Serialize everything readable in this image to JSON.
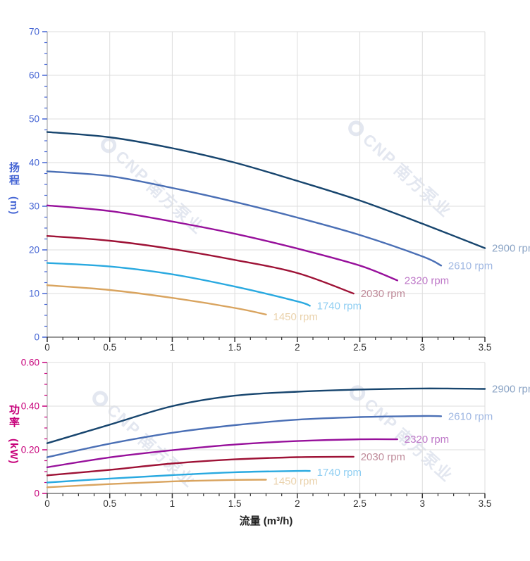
{
  "watermark": {
    "brand": "CNP",
    "name": "南方泵业",
    "color": "#E3E7F0"
  },
  "chart_data": [
    {
      "id": "head",
      "type": "line",
      "title": "",
      "ylabel": "扬程 (m)",
      "ylabel_cjk": "扬程",
      "ylabel_unit": "(m)",
      "xlabel": "",
      "xlim": [
        0,
        3.5
      ],
      "ylim": [
        0,
        70
      ],
      "grid": true,
      "legend_position": "right-of-curve-end",
      "axis_color": "#4565D4",
      "x_tick_color": "#333333",
      "grid_color": "#DDDDDD",
      "spine_left_color": "#999999",
      "spine_bottom_color": "#333333",
      "x_ticks": [
        [
          0,
          "0"
        ],
        [
          0.5,
          "0.5"
        ],
        [
          1,
          "1"
        ],
        [
          1.5,
          "1.5"
        ],
        [
          2,
          "2"
        ],
        [
          2.5,
          "2.5"
        ],
        [
          3,
          "3"
        ],
        [
          3.5,
          "3.5"
        ]
      ],
      "x_minor_step": 0.125,
      "y_ticks": [
        [
          0,
          "0"
        ],
        [
          10,
          "10"
        ],
        [
          20,
          "20"
        ],
        [
          30,
          "30"
        ],
        [
          40,
          "40"
        ],
        [
          50,
          "50"
        ],
        [
          60,
          "60"
        ],
        [
          70,
          "70"
        ]
      ],
      "y_minor_step": 2.5,
      "series": [
        {
          "name": "2900 rpm",
          "color": "#17456E",
          "label_color": "#8CA5C6",
          "points": [
            [
              0,
              47
            ],
            [
              0.5,
              45.8
            ],
            [
              1,
              43.3
            ],
            [
              1.5,
              40
            ],
            [
              2,
              35.8
            ],
            [
              2.5,
              31.3
            ],
            [
              3,
              26
            ],
            [
              3.5,
              20.4
            ]
          ]
        },
        {
          "name": "2610 rpm",
          "color": "#4A6FB5",
          "label_color": "#9FB7E2",
          "points": [
            [
              0,
              38
            ],
            [
              0.5,
              36.9
            ],
            [
              1,
              34.2
            ],
            [
              1.5,
              31
            ],
            [
              2,
              27.4
            ],
            [
              2.5,
              23.4
            ],
            [
              3,
              18.5
            ],
            [
              3.15,
              16.4
            ]
          ]
        },
        {
          "name": "2320 rpm",
          "color": "#97109B",
          "label_color": "#BE78C8",
          "points": [
            [
              0,
              30.2
            ],
            [
              0.5,
              28.9
            ],
            [
              1,
              26.5
            ],
            [
              1.5,
              23.7
            ],
            [
              2,
              20.3
            ],
            [
              2.5,
              16.4
            ],
            [
              2.8,
              13
            ]
          ]
        },
        {
          "name": "2030 rpm",
          "color": "#9E1236",
          "label_color": "#C08C9B",
          "points": [
            [
              0,
              23.2
            ],
            [
              0.5,
              22.1
            ],
            [
              1,
              20.2
            ],
            [
              1.5,
              17.7
            ],
            [
              2,
              14.7
            ],
            [
              2.45,
              10
            ]
          ]
        },
        {
          "name": "1740 rpm",
          "color": "#29A9E0",
          "label_color": "#8FCEF2",
          "points": [
            [
              0,
              17
            ],
            [
              0.5,
              16.2
            ],
            [
              1,
              14.4
            ],
            [
              1.5,
              11.6
            ],
            [
              2,
              8.2
            ],
            [
              2.1,
              7.2
            ]
          ]
        },
        {
          "name": "1450 rpm",
          "color": "#D9A45F",
          "label_color": "#EAD2AC",
          "label_dy": 8,
          "points": [
            [
              0,
              11.9
            ],
            [
              0.5,
              10.8
            ],
            [
              1,
              9
            ],
            [
              1.5,
              6.7
            ],
            [
              1.75,
              5.2
            ]
          ]
        }
      ]
    },
    {
      "id": "power",
      "type": "line",
      "title": "",
      "ylabel": "功率 (kW)",
      "ylabel_cjk": "功率",
      "ylabel_unit": "(kW)",
      "xlabel": "流量 (m³/h)",
      "xlim": [
        0,
        3.5
      ],
      "ylim": [
        0,
        0.6
      ],
      "grid": true,
      "legend_position": "right-of-curve-end",
      "axis_color": "#C7007A",
      "x_tick_color": "#333333",
      "grid_color": "#DDDDDD",
      "spine_left_color": "#999999",
      "spine_bottom_color": "#333333",
      "x_ticks": [
        [
          0,
          "0"
        ],
        [
          0.5,
          "0.5"
        ],
        [
          1,
          "1"
        ],
        [
          1.5,
          "1.5"
        ],
        [
          2,
          "2"
        ],
        [
          2.5,
          "2.5"
        ],
        [
          3,
          "3"
        ],
        [
          3.5,
          "3.5"
        ]
      ],
      "x_minor_step": 0.125,
      "y_ticks": [
        [
          0,
          "0"
        ],
        [
          0.2,
          "0.20"
        ],
        [
          0.4,
          "0.40"
        ],
        [
          0.6,
          "0.60"
        ]
      ],
      "y_minor_step": 0.05,
      "series": [
        {
          "name": "2900 rpm",
          "color": "#17456E",
          "label_color": "#8CA5C6",
          "points": [
            [
              0,
              0.23
            ],
            [
              0.5,
              0.315
            ],
            [
              1,
              0.4
            ],
            [
              1.5,
              0.448
            ],
            [
              2,
              0.466
            ],
            [
              2.5,
              0.476
            ],
            [
              3,
              0.481
            ],
            [
              3.5,
              0.479
            ]
          ]
        },
        {
          "name": "2610 rpm",
          "color": "#4A6FB5",
          "label_color": "#9FB7E2",
          "points": [
            [
              0,
              0.166
            ],
            [
              0.5,
              0.228
            ],
            [
              1,
              0.278
            ],
            [
              1.5,
              0.313
            ],
            [
              2,
              0.338
            ],
            [
              2.5,
              0.35
            ],
            [
              3,
              0.355
            ],
            [
              3.15,
              0.354
            ]
          ]
        },
        {
          "name": "2320 rpm",
          "color": "#97109B",
          "label_color": "#BE78C8",
          "points": [
            [
              0,
              0.12
            ],
            [
              0.5,
              0.165
            ],
            [
              1,
              0.198
            ],
            [
              1.5,
              0.224
            ],
            [
              2,
              0.24
            ],
            [
              2.5,
              0.248
            ],
            [
              2.8,
              0.248
            ]
          ]
        },
        {
          "name": "2030 rpm",
          "color": "#9E1236",
          "label_color": "#C08C9B",
          "points": [
            [
              0,
              0.083
            ],
            [
              0.5,
              0.108
            ],
            [
              1,
              0.137
            ],
            [
              1.5,
              0.156
            ],
            [
              2,
              0.166
            ],
            [
              2.45,
              0.168
            ]
          ]
        },
        {
          "name": "1740 rpm",
          "color": "#29A9E0",
          "label_color": "#8FCEF2",
          "label_dy": 7,
          "points": [
            [
              0,
              0.05
            ],
            [
              0.5,
              0.068
            ],
            [
              1,
              0.084
            ],
            [
              1.5,
              0.097
            ],
            [
              2,
              0.103
            ],
            [
              2.1,
              0.103
            ]
          ]
        },
        {
          "name": "1450 rpm",
          "color": "#D9A45F",
          "label_color": "#EAD2AC",
          "label_dy": 7,
          "points": [
            [
              0,
              0.028
            ],
            [
              0.5,
              0.043
            ],
            [
              1,
              0.055
            ],
            [
              1.5,
              0.062
            ],
            [
              1.75,
              0.063
            ]
          ]
        }
      ]
    }
  ]
}
